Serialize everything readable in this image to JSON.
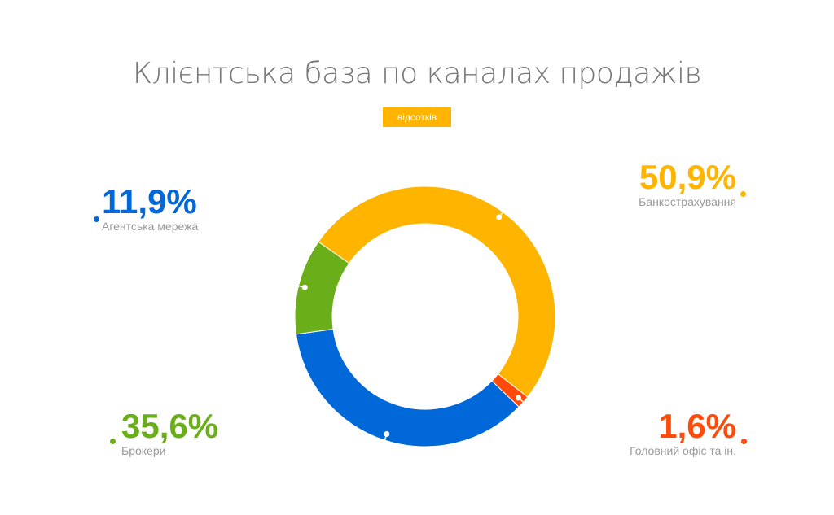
{
  "title": "Клієнтська база по каналах продажів",
  "unit_button": "відсотків",
  "chart_data": {
    "type": "pie",
    "donut": true,
    "title": "Клієнтська база по каналах продажів",
    "slices": [
      {
        "name": "Банкострахування",
        "value": 50.9,
        "label": "50,9%",
        "color": "#FFB400",
        "label_color": "#FFB400"
      },
      {
        "name": "Головний офіс та ін.",
        "value": 1.6,
        "label": "1,6%",
        "color": "#FF4A0A",
        "label_color": "#FF4A0A"
      },
      {
        "name": "Брокери",
        "value": 35.6,
        "label": "35,6%",
        "color": "#0068D9",
        "label_color": "#6AAE1A"
      },
      {
        "name": "Агентська мережа",
        "value": 11.9,
        "label": "11,9%",
        "color": "#6AAE1A",
        "label_color": "#0068D9"
      }
    ]
  }
}
